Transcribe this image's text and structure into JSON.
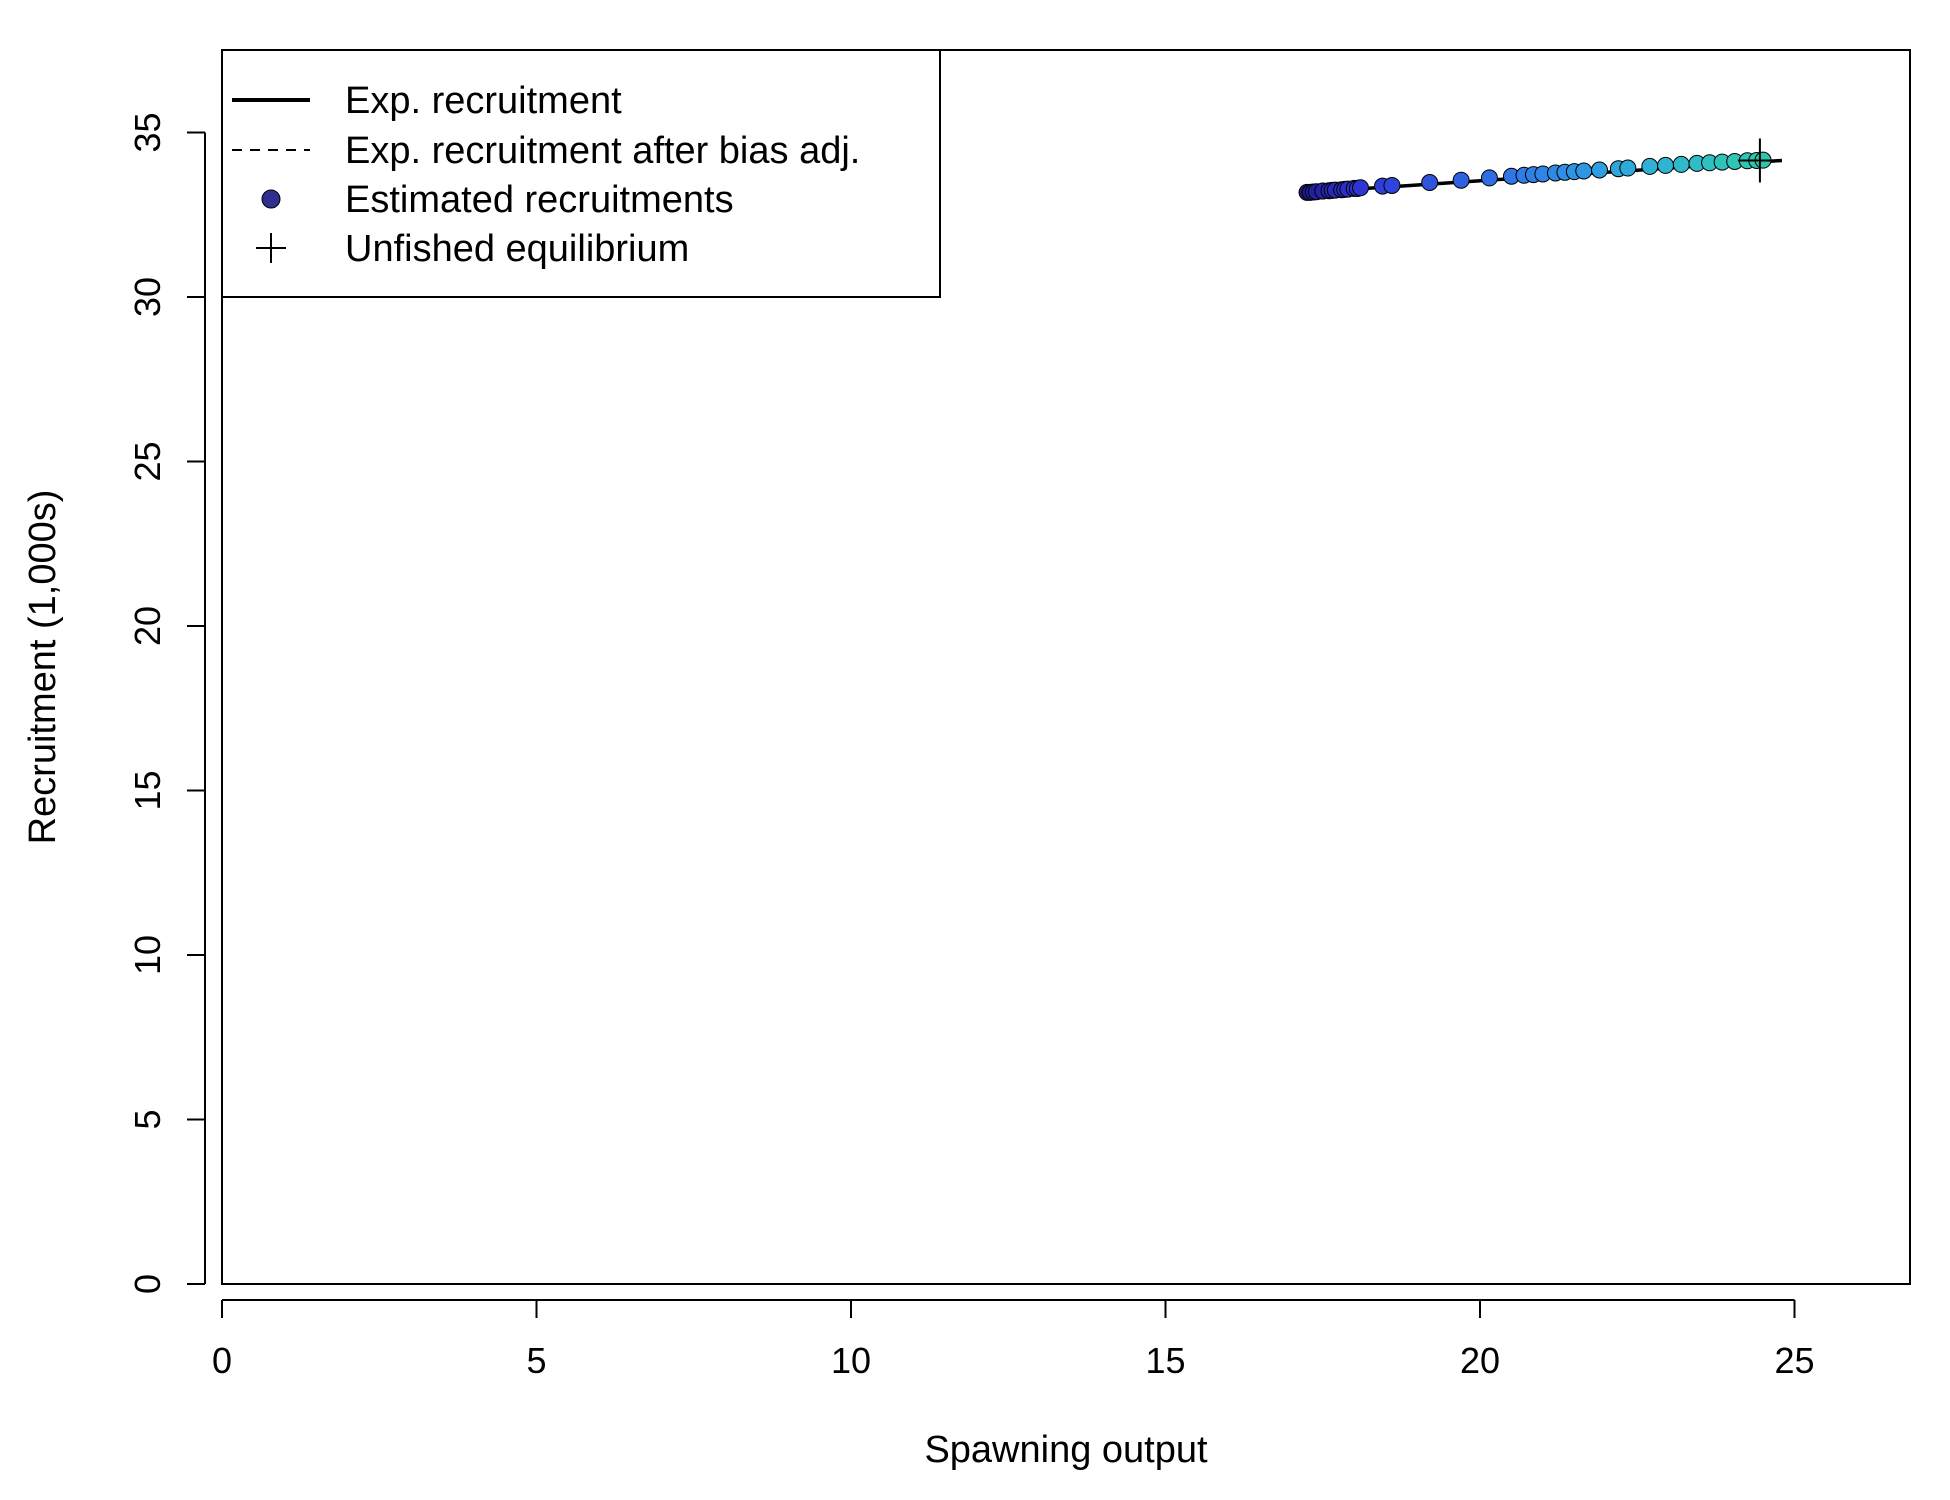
{
  "chart_data": {
    "type": "scatter",
    "title": "",
    "xlabel": "Spawning output",
    "ylabel": "Recruitment (1,000s)",
    "xlim": [
      0,
      26.9
    ],
    "ylim": [
      0,
      37.5
    ],
    "x_ticks": [
      "0",
      "5",
      "10",
      "15",
      "20",
      "25"
    ],
    "y_ticks": [
      "0",
      "5",
      "10",
      "15",
      "20",
      "25",
      "30",
      "35"
    ],
    "grid": false,
    "legend_position": "top-left",
    "legend": {
      "expected": "Exp. recruitment",
      "bias_adjusted": "Exp. recruitment after bias adj.",
      "estimated": "Estimated recruitments",
      "unfished": "Unfished equilibrium"
    },
    "expected_curve": {
      "x": [
        17.25,
        24.8
      ],
      "y": [
        33.18,
        34.15
      ]
    },
    "bias_adjusted_curve": {
      "x": [
        17.25,
        24.8
      ],
      "y": [
        33.18,
        34.15
      ]
    },
    "unfished_equilibrium": {
      "x": 24.45,
      "y": 34.15
    },
    "estimated_recruitments": {
      "x": [
        17.25,
        17.3,
        17.35,
        17.4,
        17.5,
        17.6,
        17.65,
        17.7,
        17.8,
        17.85,
        17.9,
        18.0,
        18.05,
        18.1,
        18.45,
        18.6,
        19.2,
        19.7,
        20.15,
        20.5,
        20.7,
        20.85,
        21.0,
        21.2,
        21.35,
        21.5,
        21.65,
        21.9,
        22.2,
        22.35,
        22.7,
        22.95,
        23.2,
        23.45,
        23.65,
        23.85,
        24.05,
        24.25,
        24.4,
        24.5
      ],
      "y": [
        33.18,
        33.18,
        33.19,
        33.2,
        33.22,
        33.23,
        33.24,
        33.25,
        33.26,
        33.27,
        33.28,
        33.3,
        33.3,
        33.32,
        33.37,
        33.39,
        33.48,
        33.55,
        33.62,
        33.67,
        33.7,
        33.72,
        33.74,
        33.77,
        33.79,
        33.81,
        33.83,
        33.86,
        33.9,
        33.92,
        33.97,
        34.0,
        34.03,
        34.06,
        34.08,
        34.1,
        34.12,
        34.14,
        34.15,
        34.16
      ],
      "colors": [
        "#1a1a7a",
        "#1d1d8a",
        "#1f1f95",
        "#21219e",
        "#2323a8",
        "#2526b0",
        "#2628b6",
        "#272abc",
        "#282cc0",
        "#292ec4",
        "#2a30c8",
        "#2b32cc",
        "#2c34cf",
        "#2d36d2",
        "#2e3fd8",
        "#2f44da",
        "#2f55de",
        "#2f62e0",
        "#2f6de2",
        "#2f76e4",
        "#2f7ce5",
        "#2f80e6",
        "#2f85e6",
        "#2f8ae6",
        "#2f8ee5",
        "#2f93e4",
        "#2f97e2",
        "#2f9ee0",
        "#2fa5dc",
        "#2fa9d9",
        "#2fb0d4",
        "#2fb5cf",
        "#2fb9ca",
        "#2fbdc5",
        "#2fc0c0",
        "#2fc2bb",
        "#2fc4b6",
        "#2fc5b2",
        "#2fc6ae",
        "#2fc7ab"
      ]
    }
  }
}
